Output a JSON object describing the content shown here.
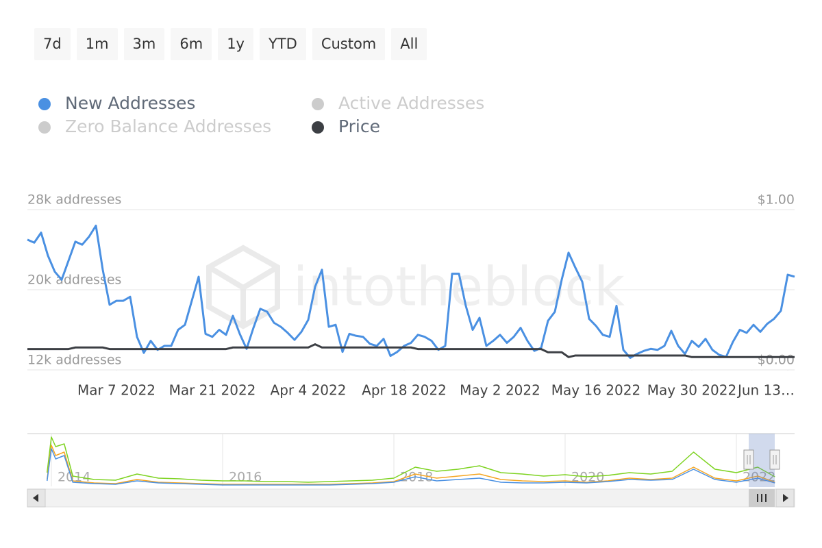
{
  "range_buttons": [
    "7d",
    "1m",
    "3m",
    "6m",
    "1y",
    "YTD",
    "Custom",
    "All"
  ],
  "watermark": "intotheblock",
  "chart_data": [
    {
      "type": "line",
      "grid": true,
      "x": [
        "2022-02-22",
        "2022-02-23",
        "2022-02-24",
        "2022-02-25",
        "2022-02-26",
        "2022-02-27",
        "2022-02-28",
        "2022-03-01",
        "2022-03-02",
        "2022-03-03",
        "2022-03-04",
        "2022-03-05",
        "2022-03-06",
        "2022-03-07",
        "2022-03-08",
        "2022-03-09",
        "2022-03-10",
        "2022-03-11",
        "2022-03-12",
        "2022-03-13",
        "2022-03-14",
        "2022-03-15",
        "2022-03-16",
        "2022-03-17",
        "2022-03-18",
        "2022-03-19",
        "2022-03-20",
        "2022-03-21",
        "2022-03-22",
        "2022-03-23",
        "2022-03-24",
        "2022-03-25",
        "2022-03-26",
        "2022-03-27",
        "2022-03-28",
        "2022-03-29",
        "2022-03-30",
        "2022-03-31",
        "2022-04-01",
        "2022-04-02",
        "2022-04-03",
        "2022-04-04",
        "2022-04-05",
        "2022-04-06",
        "2022-04-07",
        "2022-04-08",
        "2022-04-09",
        "2022-04-10",
        "2022-04-11",
        "2022-04-12",
        "2022-04-13",
        "2022-04-14",
        "2022-04-15",
        "2022-04-16",
        "2022-04-17",
        "2022-04-18",
        "2022-04-19",
        "2022-04-20",
        "2022-04-21",
        "2022-04-22",
        "2022-04-23",
        "2022-04-24",
        "2022-04-25",
        "2022-04-26",
        "2022-04-27",
        "2022-04-28",
        "2022-04-29",
        "2022-04-30",
        "2022-05-01",
        "2022-05-02",
        "2022-05-03",
        "2022-05-04",
        "2022-05-05",
        "2022-05-06",
        "2022-05-07",
        "2022-05-08",
        "2022-05-09",
        "2022-05-10",
        "2022-05-11",
        "2022-05-12",
        "2022-05-13",
        "2022-05-14",
        "2022-05-15",
        "2022-05-16",
        "2022-05-17",
        "2022-05-18",
        "2022-05-19",
        "2022-05-20",
        "2022-05-21",
        "2022-05-22",
        "2022-05-23",
        "2022-05-24",
        "2022-05-25",
        "2022-05-26",
        "2022-05-27",
        "2022-05-28",
        "2022-05-29",
        "2022-05-30",
        "2022-05-31",
        "2022-06-01",
        "2022-06-02",
        "2022-06-03",
        "2022-06-04",
        "2022-06-05",
        "2022-06-06",
        "2022-06-07",
        "2022-06-08",
        "2022-06-09",
        "2022-06-10",
        "2022-06-11",
        "2022-06-12",
        "2022-06-13",
        "2022-06-14"
      ],
      "xlim": [
        "2022-02-22",
        "2022-06-14"
      ],
      "xticks": [
        {
          "value": "2022-03-07",
          "label": "Mar 7 2022"
        },
        {
          "value": "2022-03-21",
          "label": "Mar 21 2022"
        },
        {
          "value": "2022-04-04",
          "label": "Apr 4 2022"
        },
        {
          "value": "2022-04-18",
          "label": "Apr 18 2022"
        },
        {
          "value": "2022-05-02",
          "label": "May 2 2022"
        },
        {
          "value": "2022-05-16",
          "label": "May 16 2022"
        },
        {
          "value": "2022-05-30",
          "label": "May 30 2022"
        },
        {
          "value": "2022-06-13",
          "label": "Jun 13…"
        }
      ],
      "ylim": [
        12000,
        28000
      ],
      "yticks": [
        {
          "value": 12000,
          "label": "12k addresses"
        },
        {
          "value": 20000,
          "label": "20k addresses"
        },
        {
          "value": 28000,
          "label": "28k addresses"
        }
      ],
      "y2lim": [
        0,
        1
      ],
      "y2ticks": [
        {
          "value": 0,
          "label": "$0.00"
        },
        {
          "value": 1,
          "label": "$1.00"
        }
      ],
      "series": [
        {
          "name": "New Addresses",
          "color": "#4a90e2",
          "visible": true,
          "values": [
            25000,
            24700,
            25700,
            23400,
            21800,
            21000,
            22900,
            24800,
            24500,
            25300,
            26400,
            22000,
            18500,
            18900,
            18900,
            19300,
            15300,
            13700,
            14900,
            14000,
            14400,
            14400,
            16000,
            16500,
            18900,
            21300,
            15600,
            15300,
            16000,
            15500,
            17400,
            15600,
            14100,
            16200,
            18100,
            17800,
            16700,
            16300,
            15700,
            15000,
            15800,
            17000,
            20300,
            22000,
            16300,
            16500,
            13800,
            15600,
            15400,
            15300,
            14600,
            14400,
            15100,
            13400,
            13800,
            14400,
            14700,
            15500,
            15300,
            14900,
            14000,
            14400,
            21600,
            21600,
            18400,
            16000,
            17200,
            14400,
            14900,
            15500,
            14700,
            15300,
            16200,
            14900,
            13900,
            14200,
            16900,
            17800,
            21000,
            23700,
            22200,
            20800,
            17100,
            16400,
            15500,
            15300,
            18400,
            14000,
            13200,
            13600,
            13900,
            14100,
            14000,
            14400,
            15900,
            14400,
            13600,
            14900,
            14300,
            15100,
            14000,
            13500,
            13300,
            14800,
            16000,
            15700,
            16500,
            15800,
            16600,
            17100,
            17900,
            21500,
            21300
          ]
        },
        {
          "name": "Active Addresses",
          "color": "#cccccc",
          "visible": false
        },
        {
          "name": "Zero Balance Addresses",
          "color": "#cccccc",
          "visible": false
        },
        {
          "name": "Price",
          "color": "#3c3f44",
          "visible": true,
          "axis": "y2",
          "values": [
            0.13,
            0.13,
            0.13,
            0.13,
            0.13,
            0.13,
            0.13,
            0.14,
            0.14,
            0.14,
            0.14,
            0.14,
            0.13,
            0.13,
            0.13,
            0.13,
            0.13,
            0.13,
            0.13,
            0.13,
            0.13,
            0.13,
            0.13,
            0.13,
            0.13,
            0.13,
            0.13,
            0.13,
            0.13,
            0.13,
            0.14,
            0.14,
            0.14,
            0.14,
            0.14,
            0.14,
            0.14,
            0.14,
            0.14,
            0.14,
            0.14,
            0.14,
            0.16,
            0.14,
            0.14,
            0.14,
            0.14,
            0.14,
            0.14,
            0.14,
            0.14,
            0.14,
            0.14,
            0.14,
            0.14,
            0.14,
            0.14,
            0.13,
            0.13,
            0.13,
            0.13,
            0.13,
            0.13,
            0.13,
            0.13,
            0.13,
            0.13,
            0.13,
            0.13,
            0.13,
            0.13,
            0.13,
            0.13,
            0.13,
            0.13,
            0.13,
            0.11,
            0.11,
            0.11,
            0.08,
            0.09,
            0.09,
            0.09,
            0.09,
            0.09,
            0.09,
            0.09,
            0.09,
            0.09,
            0.09,
            0.09,
            0.09,
            0.09,
            0.09,
            0.09,
            0.09,
            0.09,
            0.08,
            0.08,
            0.08,
            0.08,
            0.08,
            0.08,
            0.08,
            0.08,
            0.08,
            0.08,
            0.08,
            0.08,
            0.08,
            0.08,
            0.08,
            0.08
          ]
        }
      ]
    },
    {
      "type": "line",
      "grid": true,
      "x": [
        2013.95,
        2014.0,
        2014.05,
        2014.15,
        2014.25,
        2014.5,
        2014.75,
        2015.0,
        2015.25,
        2015.5,
        2015.75,
        2016.0,
        2016.25,
        2016.5,
        2016.75,
        2017.0,
        2017.25,
        2017.5,
        2017.75,
        2018.0,
        2018.25,
        2018.5,
        2018.75,
        2019.0,
        2019.25,
        2019.5,
        2019.75,
        2020.0,
        2020.25,
        2020.5,
        2020.75,
        2021.0,
        2021.25,
        2021.5,
        2021.75,
        2022.0,
        2022.25,
        2022.45
      ],
      "xlim": [
        2013.72,
        2022.68
      ],
      "xticks": [
        2014,
        2016,
        2018,
        2020,
        2022
      ],
      "ylim": [
        0,
        76
      ],
      "series": [
        {
          "color": "#7ed321",
          "values": [
            20,
            72,
            58,
            62,
            15,
            10,
            9,
            18,
            12,
            11,
            9,
            8,
            8,
            7,
            7,
            6,
            7,
            8,
            9,
            12,
            28,
            22,
            25,
            30,
            20,
            18,
            15,
            17,
            14,
            16,
            20,
            18,
            22,
            50,
            25,
            20,
            28,
            14
          ]
        },
        {
          "color": "#f5a623",
          "values": [
            10,
            60,
            45,
            50,
            8,
            5,
            4,
            10,
            6,
            5,
            4,
            3,
            3,
            3,
            3,
            3,
            3,
            4,
            5,
            7,
            18,
            12,
            15,
            18,
            10,
            8,
            7,
            8,
            6,
            8,
            12,
            10,
            12,
            28,
            12,
            8,
            15,
            6
          ]
        },
        {
          "color": "#4a90e2",
          "values": [
            8,
            55,
            40,
            45,
            6,
            4,
            3,
            8,
            5,
            4,
            3,
            2,
            2,
            2,
            2,
            2,
            2,
            3,
            4,
            6,
            14,
            8,
            10,
            12,
            6,
            5,
            5,
            6,
            5,
            7,
            10,
            9,
            10,
            25,
            10,
            6,
            12,
            5
          ]
        }
      ]
    }
  ]
}
